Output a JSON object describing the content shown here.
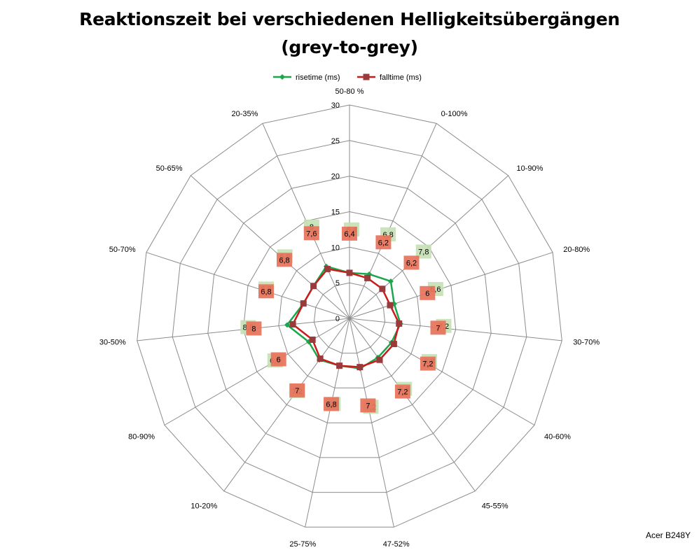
{
  "chart_data": {
    "type": "radar",
    "title": "Reaktionszeit bei verschiedenen Helligkeitsübergängen",
    "subtitle": "(grey-to-grey)",
    "categories": [
      "50-80 %",
      "0-100%",
      "10-90%",
      "20-80%",
      "30-70%",
      "40-60%",
      "45-55%",
      "47-52%",
      "25-75%",
      "10-20%",
      "80-90%",
      "30-50%",
      "50-70%",
      "50-65%",
      "20-35%"
    ],
    "rlim": [
      0,
      30
    ],
    "ticks": [
      "0",
      "5",
      "10",
      "15",
      "20",
      "25",
      "30"
    ],
    "grid": true,
    "legend_position": "top",
    "series": [
      {
        "name": "risetime (ms)",
        "color": "#1aa64a",
        "label_bg": "#c5e0b4",
        "values": [
          6.4,
          6.8,
          7.8,
          6.6,
          7.2,
          6.8,
          6.8,
          7.2,
          6.8,
          7.2,
          6.6,
          8.8,
          6.8,
          6.8,
          8.0
        ],
        "labels": [
          "6,4",
          "6,8",
          "7,8",
          "6,6",
          "7,2",
          "6,8",
          "6,8",
          "7,2",
          "6,8",
          "7,2",
          "6,6",
          "8,8",
          "6,8",
          "6,8",
          "8"
        ]
      },
      {
        "name": "falltime (ms)",
        "color": "#cc1a1a",
        "label_bg": "#e8725a",
        "values": [
          6.4,
          6.2,
          6.2,
          6.0,
          7.0,
          7.2,
          7.2,
          7.0,
          6.8,
          7.0,
          6.0,
          8.0,
          6.8,
          6.8,
          7.6
        ],
        "labels": [
          "6,4",
          "6,2",
          "6,2",
          "6",
          "7",
          "7,2",
          "7,2",
          "7",
          "6,8",
          "7",
          "6",
          "8",
          "6,8",
          "6,8",
          "7,6"
        ]
      }
    ]
  },
  "footer": "Acer B248Y"
}
